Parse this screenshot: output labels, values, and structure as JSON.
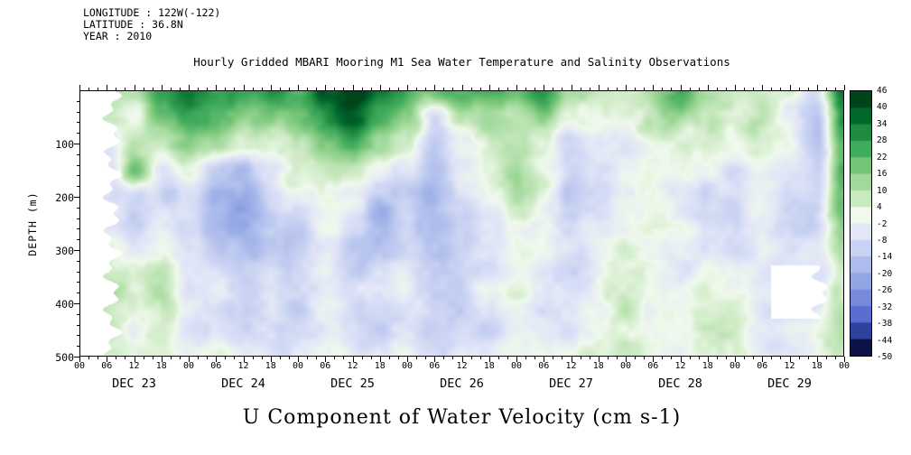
{
  "meta": {
    "longitude": "LONGITUDE : 122W(-122)",
    "latitude": "LATITUDE : 36.8N",
    "year": "YEAR : 2010"
  },
  "title": "Hourly Gridded MBARI Mooring M1 Sea Water Temperature and Salinity Observations",
  "caption": "U Component of Water Velocity (cm s-1)",
  "chart_data": {
    "type": "heatmap",
    "title": "Hourly Gridded MBARI Mooring M1 Sea Water Temperature and Salinity Observations",
    "variable": "U Component of Water Velocity (cm s-1)",
    "ylabel": "DEPTH (m)",
    "y_ticks": [
      100,
      200,
      300,
      400,
      500
    ],
    "depth_range_m": [
      0,
      500
    ],
    "x_range_hours": [
      0,
      168
    ],
    "hour_labels": [
      "00",
      "06",
      "12",
      "18"
    ],
    "days": [
      "DEC 23",
      "DEC 24",
      "DEC 25",
      "DEC 26",
      "DEC 27",
      "DEC 28",
      "DEC 29"
    ],
    "colorbar": {
      "boundaries": [
        46,
        40,
        34,
        28,
        22,
        16,
        10,
        4,
        -2,
        -8,
        -14,
        -20,
        -26,
        -32,
        -38,
        -44,
        -50
      ],
      "colors": [
        "#00441b",
        "#01682d",
        "#1f8b41",
        "#41ab5d",
        "#74c476",
        "#a1d99b",
        "#c9e9c0",
        "#eff9ec",
        "#e2e6f7",
        "#c8d2f2",
        "#adbcec",
        "#92a5e4",
        "#7789da",
        "#5b6ecf",
        "#31429e",
        "#0b1247"
      ]
    },
    "grid": {
      "time_step_hours": 6,
      "depth_step_m": 50,
      "values": [
        [
          2,
          16,
          14,
          22,
          30,
          26,
          22,
          28,
          24,
          40,
          47,
          34,
          26,
          20,
          24,
          22,
          18,
          26,
          16,
          12,
          10,
          16,
          20,
          12,
          8,
          12,
          6,
          -4,
          36
        ],
        [
          2,
          10,
          6,
          16,
          24,
          20,
          14,
          20,
          18,
          30,
          40,
          26,
          16,
          -8,
          10,
          16,
          12,
          18,
          8,
          6,
          6,
          12,
          14,
          6,
          2,
          6,
          -2,
          -10,
          32
        ],
        [
          1,
          -4,
          12,
          8,
          16,
          10,
          4,
          8,
          12,
          20,
          26,
          12,
          6,
          -14,
          -2,
          10,
          14,
          10,
          -4,
          0,
          2,
          8,
          8,
          2,
          -4,
          2,
          -6,
          -12,
          28
        ],
        [
          1,
          -8,
          14,
          -6,
          6,
          -10,
          -16,
          -10,
          6,
          12,
          10,
          0,
          -4,
          -16,
          -6,
          4,
          10,
          4,
          -8,
          -2,
          0,
          6,
          4,
          -2,
          -8,
          0,
          -6,
          -12,
          24
        ],
        [
          0,
          -10,
          -12,
          -10,
          -2,
          -18,
          -22,
          -14,
          -4,
          6,
          2,
          -10,
          -8,
          -18,
          -10,
          -2,
          6,
          0,
          -10,
          -6,
          -2,
          4,
          0,
          -6,
          -10,
          -2,
          -8,
          -12,
          20
        ],
        [
          0,
          -6,
          -14,
          -6,
          -8,
          -16,
          -20,
          -12,
          -8,
          0,
          -8,
          -14,
          -10,
          -16,
          -12,
          -6,
          2,
          -4,
          -12,
          -8,
          -4,
          0,
          -2,
          -8,
          -12,
          -4,
          -8,
          -10,
          14
        ],
        [
          0,
          2,
          -6,
          0,
          -10,
          -12,
          -16,
          -8,
          -12,
          -6,
          -12,
          -16,
          -8,
          -14,
          -12,
          -8,
          -2,
          -6,
          -10,
          -6,
          -2,
          -4,
          -6,
          -8,
          -10,
          -4,
          -6,
          -8,
          12
        ],
        [
          0,
          6,
          2,
          6,
          -8,
          -8,
          -12,
          -6,
          -14,
          -8,
          -14,
          -12,
          -6,
          -10,
          -14,
          -10,
          -4,
          -8,
          -6,
          -2,
          2,
          -6,
          -8,
          -2,
          -2,
          -6,
          -4,
          -6,
          10
        ],
        [
          0,
          8,
          4,
          8,
          -6,
          -6,
          -10,
          -4,
          -12,
          -6,
          -12,
          -10,
          -4,
          -8,
          -12,
          -8,
          -2,
          -6,
          -4,
          0,
          4,
          -4,
          -6,
          0,
          0,
          -4,
          -2,
          -4,
          8
        ],
        [
          0,
          6,
          2,
          6,
          -4,
          -4,
          -8,
          -2,
          -8,
          -4,
          -8,
          -6,
          -2,
          -6,
          -8,
          -6,
          0,
          -4,
          -2,
          2,
          4,
          -2,
          -4,
          2,
          2,
          -2,
          0,
          -2,
          6
        ],
        [
          0,
          3,
          1,
          3,
          -2,
          -2,
          -4,
          0,
          -4,
          -2,
          -4,
          -3,
          0,
          -3,
          -4,
          -3,
          1,
          -2,
          0,
          2,
          2,
          0,
          -2,
          2,
          2,
          0,
          1,
          0,
          4
        ]
      ]
    },
    "gaps": [
      {
        "t0": 0,
        "t1": 7,
        "d0": 0,
        "d1": 500
      },
      {
        "t0": 152,
        "t1": 163,
        "d0": 330,
        "d1": 430
      }
    ],
    "noise": {
      "seed": 7,
      "octaves": [
        [
          6,
          11,
          90
        ],
        [
          3.5,
          4.5,
          38
        ],
        [
          1.8,
          1.8,
          15
        ]
      ]
    }
  }
}
